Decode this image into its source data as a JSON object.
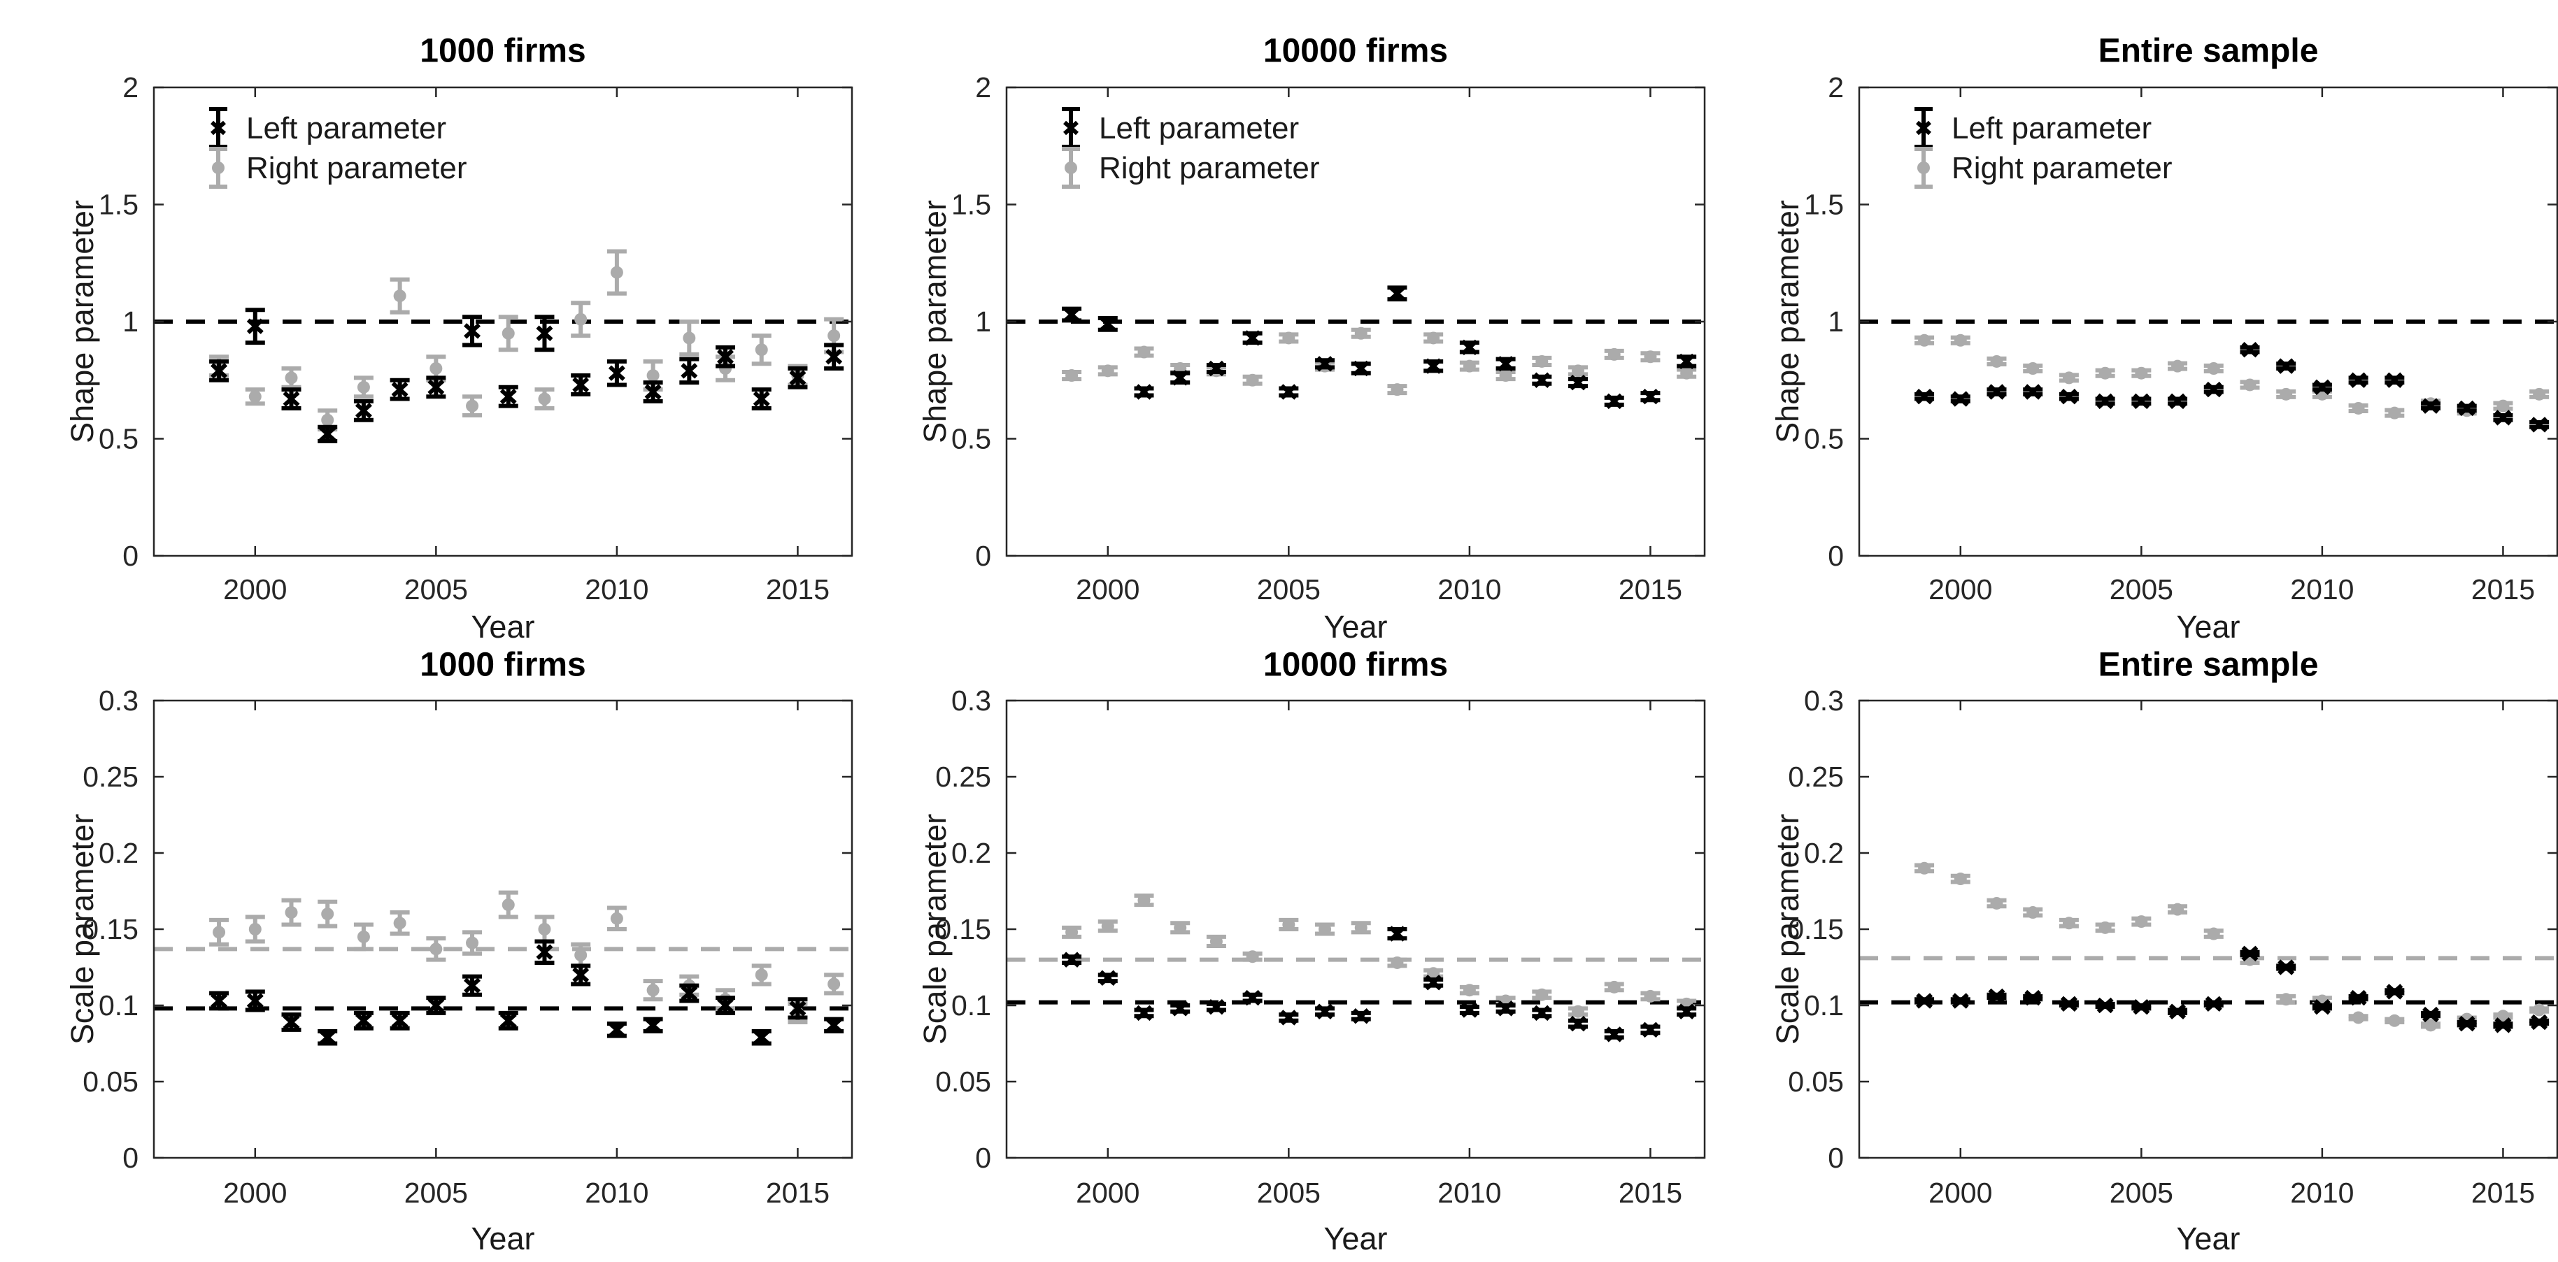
{
  "figure": {
    "background": "#ffffff",
    "colors": {
      "left": "#000000",
      "right": "#ababab",
      "axis": "#262626",
      "tick_text": "#262626",
      "label_text": "#1a1a1a",
      "title_text": "#000000"
    },
    "legend": {
      "items": [
        {
          "label": "Left parameter",
          "series": "left",
          "marker": "x"
        },
        {
          "label": "Right parameter",
          "series": "right",
          "marker": "circle"
        }
      ]
    }
  },
  "x_years": [
    1999,
    2000,
    2001,
    2002,
    2003,
    2004,
    2005,
    2006,
    2007,
    2008,
    2009,
    2010,
    2011,
    2012,
    2013,
    2014,
    2015,
    2016
  ],
  "chart_data": [
    {
      "type": "scatter",
      "title": "1000 firms",
      "xlabel": "Year",
      "ylabel": "Shape parameter",
      "xlim": [
        1997.2,
        2016.5
      ],
      "ylim": [
        0,
        2
      ],
      "xticks": [
        2000,
        2005,
        2010,
        2015
      ],
      "yticks": [
        0,
        0.5,
        1,
        1.5,
        2
      ],
      "ytick_labels": [
        "0",
        "0.5",
        "1",
        "1.5",
        "2"
      ],
      "grid": false,
      "legend": true,
      "legend_position": "top-left",
      "ref_lines": [
        {
          "series": "left",
          "y": 1.0
        }
      ],
      "series": [
        {
          "name": "Left parameter",
          "series": "left",
          "marker": "x",
          "values": [
            0.79,
            0.98,
            0.67,
            0.52,
            0.62,
            0.71,
            0.72,
            0.96,
            0.68,
            0.95,
            0.73,
            0.78,
            0.7,
            0.79,
            0.85,
            0.67,
            0.76,
            0.85
          ],
          "errors": [
            0.04,
            0.07,
            0.04,
            0.03,
            0.04,
            0.04,
            0.04,
            0.06,
            0.04,
            0.07,
            0.04,
            0.05,
            0.04,
            0.05,
            0.04,
            0.04,
            0.04,
            0.05
          ]
        },
        {
          "name": "Right parameter",
          "series": "right",
          "marker": "circle",
          "values": [
            0.81,
            0.68,
            0.76,
            0.58,
            0.72,
            1.11,
            0.8,
            0.64,
            0.95,
            0.67,
            1.01,
            1.21,
            0.77,
            0.93,
            0.8,
            0.88,
            0.77,
            0.94
          ],
          "errors": [
            0.04,
            0.03,
            0.04,
            0.04,
            0.04,
            0.07,
            0.05,
            0.04,
            0.07,
            0.04,
            0.07,
            0.09,
            0.06,
            0.07,
            0.05,
            0.06,
            0.04,
            0.07
          ]
        }
      ]
    },
    {
      "type": "scatter",
      "title": "10000 firms",
      "xlabel": "Year",
      "ylabel": "Shape parameter",
      "xlim": [
        1997.2,
        2016.5
      ],
      "ylim": [
        0,
        2
      ],
      "xticks": [
        2000,
        2005,
        2010,
        2015
      ],
      "yticks": [
        0,
        0.5,
        1,
        1.5,
        2
      ],
      "ytick_labels": [
        "0",
        "0.5",
        "1",
        "1.5",
        "2"
      ],
      "grid": false,
      "legend": true,
      "legend_position": "top-left",
      "ref_lines": [
        {
          "series": "left",
          "y": 1.0
        }
      ],
      "series": [
        {
          "name": "Left parameter",
          "series": "left",
          "marker": "x",
          "values": [
            1.03,
            0.99,
            0.7,
            0.76,
            0.8,
            0.93,
            0.7,
            0.82,
            0.8,
            1.12,
            0.81,
            0.89,
            0.82,
            0.75,
            0.74,
            0.66,
            0.68,
            0.83
          ],
          "errors": [
            0.025,
            0.025,
            0.015,
            0.02,
            0.015,
            0.02,
            0.015,
            0.015,
            0.02,
            0.025,
            0.02,
            0.02,
            0.02,
            0.015,
            0.015,
            0.015,
            0.015,
            0.02
          ]
        },
        {
          "name": "Right parameter",
          "series": "right",
          "marker": "circle",
          "values": [
            0.77,
            0.79,
            0.87,
            0.8,
            0.79,
            0.75,
            0.93,
            0.81,
            0.95,
            0.71,
            0.93,
            0.81,
            0.77,
            0.83,
            0.79,
            0.86,
            0.85,
            0.78
          ],
          "errors": [
            0.015,
            0.015,
            0.015,
            0.015,
            0.015,
            0.015,
            0.015,
            0.015,
            0.015,
            0.015,
            0.015,
            0.015,
            0.015,
            0.015,
            0.015,
            0.015,
            0.015,
            0.015
          ]
        }
      ]
    },
    {
      "type": "scatter",
      "title": "Entire sample",
      "xlabel": "Year",
      "ylabel": "Shape parameter",
      "xlim": [
        1997.2,
        2016.5
      ],
      "ylim": [
        0,
        2
      ],
      "xticks": [
        2000,
        2005,
        2010,
        2015
      ],
      "yticks": [
        0,
        0.5,
        1,
        1.5,
        2
      ],
      "ytick_labels": [
        "0",
        "0.5",
        "1",
        "1.5",
        "2"
      ],
      "grid": false,
      "legend": true,
      "legend_position": "top-left",
      "ref_lines": [
        {
          "series": "left",
          "y": 1.0
        }
      ],
      "series": [
        {
          "name": "Left parameter",
          "series": "left",
          "marker": "x",
          "values": [
            0.68,
            0.67,
            0.7,
            0.7,
            0.68,
            0.66,
            0.66,
            0.66,
            0.71,
            0.88,
            0.81,
            0.72,
            0.75,
            0.75,
            0.64,
            0.63,
            0.59,
            0.56
          ],
          "errors": [
            0.01,
            0.01,
            0.01,
            0.01,
            0.01,
            0.01,
            0.01,
            0.01,
            0.01,
            0.01,
            0.01,
            0.01,
            0.01,
            0.01,
            0.01,
            0.01,
            0.01,
            0.01
          ]
        },
        {
          "name": "Right parameter",
          "series": "right",
          "marker": "circle",
          "values": [
            0.92,
            0.92,
            0.83,
            0.8,
            0.76,
            0.78,
            0.78,
            0.81,
            0.8,
            0.73,
            0.69,
            0.69,
            0.63,
            0.61,
            0.65,
            0.62,
            0.64,
            0.69
          ],
          "errors": [
            0.012,
            0.012,
            0.012,
            0.012,
            0.012,
            0.012,
            0.012,
            0.012,
            0.012,
            0.012,
            0.012,
            0.012,
            0.012,
            0.012,
            0.012,
            0.012,
            0.012,
            0.012
          ]
        }
      ]
    },
    {
      "type": "scatter",
      "title": "1000 firms",
      "xlabel": "Year",
      "ylabel": "Scale parameter",
      "xlim": [
        1997.2,
        2016.5
      ],
      "ylim": [
        0,
        0.3
      ],
      "xticks": [
        2000,
        2005,
        2010,
        2015
      ],
      "yticks": [
        0,
        0.05,
        0.1,
        0.15,
        0.2,
        0.25,
        0.3
      ],
      "ytick_labels": [
        "0",
        "0.05",
        "0.1",
        "0.15",
        "0.2",
        "0.25",
        "0.3"
      ],
      "grid": false,
      "legend": false,
      "ref_lines": [
        {
          "series": "right",
          "y": 0.137
        },
        {
          "series": "left",
          "y": 0.098
        }
      ],
      "series": [
        {
          "name": "Left parameter",
          "series": "left",
          "marker": "x",
          "values": [
            0.103,
            0.103,
            0.089,
            0.079,
            0.09,
            0.09,
            0.1,
            0.113,
            0.09,
            0.135,
            0.12,
            0.084,
            0.087,
            0.108,
            0.1,
            0.079,
            0.098,
            0.087
          ],
          "errors": [
            0.005,
            0.006,
            0.005,
            0.004,
            0.005,
            0.005,
            0.005,
            0.006,
            0.005,
            0.007,
            0.006,
            0.004,
            0.004,
            0.005,
            0.005,
            0.004,
            0.006,
            0.004
          ]
        },
        {
          "name": "Right parameter",
          "series": "right",
          "marker": "circle",
          "values": [
            0.148,
            0.15,
            0.161,
            0.16,
            0.145,
            0.154,
            0.137,
            0.141,
            0.166,
            0.15,
            0.133,
            0.157,
            0.11,
            0.113,
            0.104,
            0.12,
            0.095,
            0.114
          ],
          "errors": [
            0.008,
            0.008,
            0.008,
            0.008,
            0.008,
            0.007,
            0.007,
            0.007,
            0.008,
            0.008,
            0.007,
            0.007,
            0.006,
            0.006,
            0.006,
            0.006,
            0.006,
            0.006
          ]
        }
      ]
    },
    {
      "type": "scatter",
      "title": "10000 firms",
      "xlabel": "Year",
      "ylabel": "Scale parameter",
      "xlim": [
        1997.2,
        2016.5
      ],
      "ylim": [
        0,
        0.3
      ],
      "xticks": [
        2000,
        2005,
        2010,
        2015
      ],
      "yticks": [
        0,
        0.05,
        0.1,
        0.15,
        0.2,
        0.25,
        0.3
      ],
      "ytick_labels": [
        "0",
        "0.05",
        "0.1",
        "0.15",
        "0.2",
        "0.25",
        "0.3"
      ],
      "grid": false,
      "legend": false,
      "ref_lines": [
        {
          "series": "right",
          "y": 0.13
        },
        {
          "series": "left",
          "y": 0.102
        }
      ],
      "series": [
        {
          "name": "Left parameter",
          "series": "left",
          "marker": "x",
          "values": [
            0.13,
            0.118,
            0.095,
            0.098,
            0.099,
            0.105,
            0.092,
            0.096,
            0.093,
            0.147,
            0.115,
            0.097,
            0.098,
            0.095,
            0.088,
            0.081,
            0.084,
            0.096
          ],
          "errors": [
            0.002,
            0.002,
            0.002,
            0.002,
            0.002,
            0.002,
            0.002,
            0.002,
            0.002,
            0.003,
            0.002,
            0.002,
            0.002,
            0.002,
            0.002,
            0.002,
            0.002,
            0.002
          ]
        },
        {
          "name": "Right parameter",
          "series": "right",
          "marker": "circle",
          "values": [
            0.148,
            0.152,
            0.169,
            0.151,
            0.142,
            0.132,
            0.153,
            0.15,
            0.151,
            0.128,
            0.121,
            0.11,
            0.103,
            0.107,
            0.096,
            0.112,
            0.106,
            0.101
          ],
          "errors": [
            0.003,
            0.003,
            0.003,
            0.003,
            0.003,
            0.002,
            0.003,
            0.003,
            0.003,
            0.002,
            0.002,
            0.002,
            0.002,
            0.002,
            0.002,
            0.002,
            0.002,
            0.002
          ]
        }
      ]
    },
    {
      "type": "scatter",
      "title": "Entire sample",
      "xlabel": "Year",
      "ylabel": "Scale parameter",
      "xlim": [
        1997.2,
        2016.5
      ],
      "ylim": [
        0,
        0.3
      ],
      "xticks": [
        2000,
        2005,
        2010,
        2015
      ],
      "yticks": [
        0,
        0.05,
        0.1,
        0.15,
        0.2,
        0.25,
        0.3
      ],
      "ytick_labels": [
        "0",
        "0.05",
        "0.1",
        "0.15",
        "0.2",
        "0.25",
        "0.3"
      ],
      "grid": false,
      "legend": false,
      "ref_lines": [
        {
          "series": "right",
          "y": 0.131
        },
        {
          "series": "left",
          "y": 0.102
        }
      ],
      "series": [
        {
          "name": "Left parameter",
          "series": "left",
          "marker": "x",
          "values": [
            0.103,
            0.103,
            0.106,
            0.105,
            0.101,
            0.1,
            0.099,
            0.096,
            0.101,
            0.134,
            0.125,
            0.099,
            0.105,
            0.109,
            0.094,
            0.088,
            0.087,
            0.089
          ],
          "errors": [
            0.001,
            0.001,
            0.001,
            0.001,
            0.001,
            0.001,
            0.001,
            0.001,
            0.001,
            0.001,
            0.001,
            0.001,
            0.001,
            0.001,
            0.001,
            0.001,
            0.001,
            0.001
          ]
        },
        {
          "name": "Right parameter",
          "series": "right",
          "marker": "circle",
          "values": [
            0.19,
            0.183,
            0.167,
            0.161,
            0.154,
            0.151,
            0.155,
            0.163,
            0.147,
            0.13,
            0.104,
            0.103,
            0.092,
            0.09,
            0.087,
            0.091,
            0.093,
            0.097
          ],
          "errors": [
            0.002,
            0.002,
            0.002,
            0.002,
            0.002,
            0.002,
            0.002,
            0.002,
            0.002,
            0.002,
            0.002,
            0.002,
            0.001,
            0.001,
            0.001,
            0.001,
            0.001,
            0.001
          ]
        }
      ]
    }
  ]
}
